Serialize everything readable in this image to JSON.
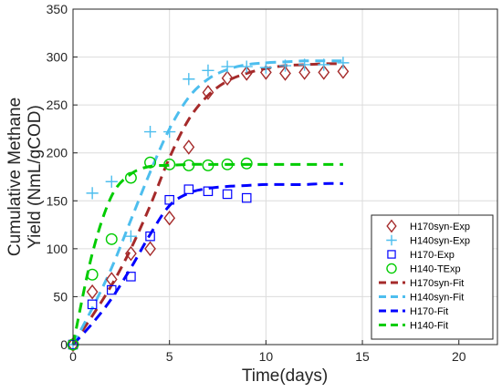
{
  "chart_data": {
    "type": "scatter",
    "xlabel": "Time(days)",
    "ylabel_lines": [
      "Cumulative Methane",
      "Yield (NmL/gCOD)"
    ],
    "xlim": [
      0,
      22
    ],
    "ylim": [
      0,
      350
    ],
    "xticks": [
      0,
      5,
      10,
      15,
      20
    ],
    "yticks": [
      0,
      50,
      100,
      150,
      200,
      250,
      300,
      350
    ],
    "grid": true,
    "legend_position": "lower-right",
    "series": [
      {
        "name": "H170syn-Exp",
        "kind": "marker",
        "marker": "diamond",
        "color": "#A52A2A",
        "x": [
          0,
          1,
          2,
          3,
          4,
          5,
          6,
          7,
          8,
          9,
          10,
          11,
          12,
          13,
          14
        ],
        "y": [
          0,
          55,
          68,
          95,
          100,
          132,
          206,
          263,
          278,
          283,
          284,
          283,
          284,
          284,
          285
        ]
      },
      {
        "name": "H140syn-Exp",
        "kind": "marker",
        "marker": "plus",
        "color": "#4DBEEE",
        "x": [
          0,
          1,
          2,
          3,
          4,
          5,
          6,
          7,
          8,
          9,
          10,
          11,
          12,
          13,
          14
        ],
        "y": [
          0,
          158,
          170,
          113,
          222,
          222,
          277,
          286,
          290,
          290,
          289,
          291,
          292,
          292,
          294
        ]
      },
      {
        "name": "H170-Exp",
        "kind": "marker",
        "marker": "square",
        "color": "#0000FF",
        "x": [
          0,
          1,
          2,
          3,
          4,
          5,
          6,
          7,
          8,
          9
        ],
        "y": [
          0,
          42,
          57,
          71,
          113,
          151,
          162,
          160,
          157,
          153
        ]
      },
      {
        "name": "H140-TExp",
        "kind": "marker",
        "marker": "circle",
        "color": "#00CC00",
        "x": [
          0,
          1,
          2,
          3,
          4,
          5,
          6,
          7,
          8,
          9
        ],
        "y": [
          0,
          73,
          110,
          174,
          190,
          188,
          187,
          187,
          188,
          189
        ]
      },
      {
        "name": "H170syn-Fit",
        "kind": "line",
        "color": "#A52A2A",
        "x": [
          0,
          1,
          2,
          3,
          4,
          5,
          6,
          7,
          8,
          9,
          10,
          11,
          12,
          13,
          14
        ],
        "y": [
          0,
          30,
          62,
          100,
          145,
          195,
          235,
          260,
          275,
          283,
          288,
          291,
          292,
          293,
          293
        ]
      },
      {
        "name": "H140syn-Fit",
        "kind": "line",
        "color": "#4DBEEE",
        "x": [
          0,
          1,
          2,
          3,
          4,
          5,
          6,
          7,
          8,
          9,
          10,
          11,
          12,
          13,
          14
        ],
        "y": [
          0,
          38,
          80,
          130,
          180,
          225,
          258,
          277,
          287,
          292,
          294,
          295,
          296,
          296,
          296
        ]
      },
      {
        "name": "H170-Fit",
        "kind": "line",
        "color": "#0000FF",
        "x": [
          0,
          1,
          2,
          3,
          4,
          5,
          6,
          7,
          8,
          9,
          10,
          11,
          12,
          13,
          14
        ],
        "y": [
          0,
          22,
          48,
          80,
          115,
          145,
          158,
          163,
          165,
          166,
          167,
          167,
          167,
          168,
          168
        ]
      },
      {
        "name": "H140-Fit",
        "kind": "line",
        "color": "#00CC00",
        "x": [
          0,
          1,
          2,
          3,
          4,
          5,
          6,
          7,
          8,
          9,
          10,
          11,
          12,
          13,
          14
        ],
        "y": [
          0,
          95,
          155,
          178,
          186,
          187,
          188,
          188,
          188,
          188,
          188,
          188,
          188,
          188,
          188
        ]
      }
    ]
  }
}
